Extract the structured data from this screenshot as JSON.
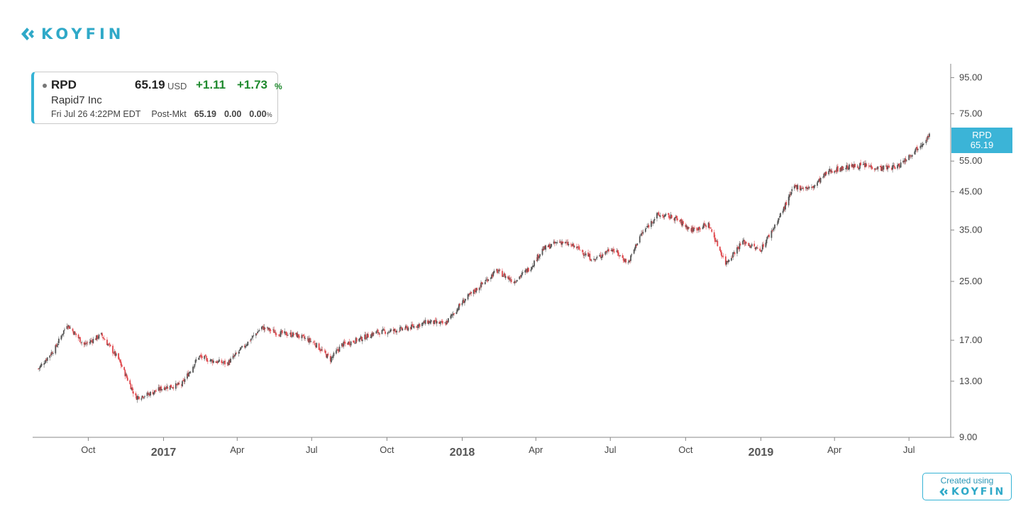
{
  "brand": {
    "name": "KOYFIN",
    "accent": "#2fa9c8"
  },
  "quote": {
    "symbol": "RPD",
    "price": "65.19",
    "currency": "USD",
    "change": "+1.11",
    "change_pct": "+1.73",
    "pct_sign": "%",
    "company": "Rapid7 Inc",
    "timestamp": "Fri Jul 26 4:22PM EDT",
    "session": "Post-Mkt",
    "session_price": "65.19",
    "session_change": "0.00",
    "session_pct": "0.00",
    "up_color": "#1f8a2e"
  },
  "price_tag": {
    "symbol": "RPD",
    "price": "65.19",
    "color": "#3bb4d7"
  },
  "footer": {
    "created_label": "Created using",
    "brand": "KOYFIN"
  },
  "chart_data": {
    "type": "line",
    "style": "candlestick",
    "x_range": [
      "2016-07-25",
      "2019-08-21"
    ],
    "y_scale": "log",
    "ylim": [
      9,
      110
    ],
    "y_ticks": [
      "95.00",
      "75.00",
      "55.00",
      "45.00",
      "35.00",
      "25.00",
      "17.00",
      "13.00",
      "9.00"
    ],
    "x_ticks": [
      {
        "label": "Oct",
        "date": "2016-10-01",
        "major": false
      },
      {
        "label": "2017",
        "date": "2017-01-01",
        "major": true
      },
      {
        "label": "Apr",
        "date": "2017-04-01",
        "major": false
      },
      {
        "label": "Jul",
        "date": "2017-07-01",
        "major": false
      },
      {
        "label": "Oct",
        "date": "2017-10-01",
        "major": false
      },
      {
        "label": "2018",
        "date": "2018-01-01",
        "major": true
      },
      {
        "label": "Apr",
        "date": "2018-04-01",
        "major": false
      },
      {
        "label": "Jul",
        "date": "2018-07-01",
        "major": false
      },
      {
        "label": "Oct",
        "date": "2018-10-01",
        "major": false
      },
      {
        "label": "2019",
        "date": "2019-01-01",
        "major": true
      },
      {
        "label": "Apr",
        "date": "2019-04-01",
        "major": false
      },
      {
        "label": "Jul",
        "date": "2019-07-01",
        "major": false
      }
    ],
    "series": [
      {
        "up_color": "#555555",
        "down_color": "#e0474c",
        "x": [
          "2016-08-01",
          "2016-08-22",
          "2016-09-05",
          "2016-09-26",
          "2016-10-17",
          "2016-11-07",
          "2016-11-28",
          "2016-12-12",
          "2017-01-02",
          "2017-01-23",
          "2017-02-13",
          "2017-02-27",
          "2017-03-20",
          "2017-04-10",
          "2017-05-01",
          "2017-05-22",
          "2017-06-12",
          "2017-07-03",
          "2017-07-24",
          "2017-08-07",
          "2017-08-28",
          "2017-09-18",
          "2017-10-09",
          "2017-10-30",
          "2017-11-20",
          "2017-12-11",
          "2018-01-01",
          "2018-01-22",
          "2018-02-12",
          "2018-03-05",
          "2018-03-26",
          "2018-04-09",
          "2018-04-30",
          "2018-05-21",
          "2018-06-11",
          "2018-07-02",
          "2018-07-23",
          "2018-08-06",
          "2018-08-27",
          "2018-09-17",
          "2018-10-08",
          "2018-10-29",
          "2018-11-19",
          "2018-12-10",
          "2018-12-31",
          "2019-01-21",
          "2019-02-11",
          "2019-03-04",
          "2019-03-25",
          "2019-04-15",
          "2019-05-06",
          "2019-05-27",
          "2019-06-17",
          "2019-07-08",
          "2019-07-26"
        ],
        "y": [
          14.1,
          16.2,
          18.9,
          16.5,
          17.6,
          15.0,
          11.7,
          11.9,
          12.5,
          12.7,
          15.3,
          14.9,
          14.6,
          16.4,
          18.5,
          17.8,
          17.6,
          16.8,
          15.0,
          16.5,
          17.1,
          17.9,
          18.1,
          18.5,
          19.2,
          18.9,
          21.8,
          24.2,
          26.8,
          25.0,
          27.5,
          30.8,
          32.5,
          31.2,
          28.7,
          31.1,
          28.2,
          33.6,
          38.6,
          38.0,
          35.0,
          36.3,
          28.2,
          32.5,
          30.6,
          37.0,
          46.5,
          46.0,
          51.5,
          52.8,
          53.5,
          52.5,
          53.0,
          59.0,
          65.19
        ]
      }
    ]
  }
}
